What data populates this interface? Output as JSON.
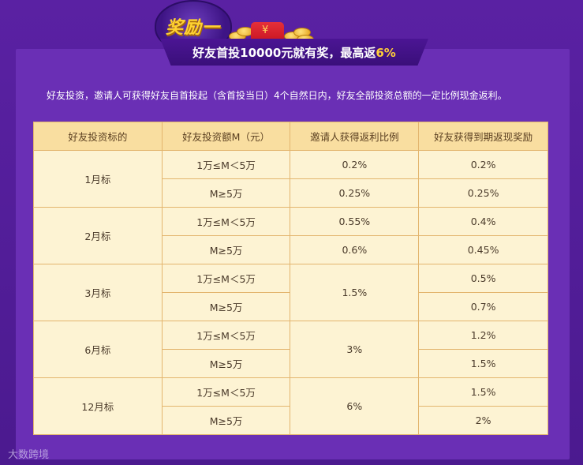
{
  "header": {
    "badge": "奖励一",
    "ribbon_prefix": "好友首投10000元就有奖，最高返",
    "ribbon_highlight": "6%",
    "redbag_symbol": "¥"
  },
  "description": "好友投资，邀请人可获得好友自首投起（含首投当日）4个自然日内，好友全部投资总额的一定比例现金返利。",
  "table": {
    "headers": [
      "好友投资标的",
      "好友投资额M（元）",
      "邀请人获得返利比例",
      "好友获得到期返现奖励"
    ],
    "groups": [
      {
        "term": "1月标",
        "rows": [
          {
            "range": "1万≤M＜5万",
            "inviter": "0.2%",
            "friend": "0.2%"
          },
          {
            "range": "M≥5万",
            "inviter": "0.25%",
            "friend": "0.25%"
          }
        ]
      },
      {
        "term": "2月标",
        "rows": [
          {
            "range": "1万≤M＜5万",
            "inviter": "0.55%",
            "friend": "0.4%"
          },
          {
            "range": "M≥5万",
            "inviter": "0.6%",
            "friend": "0.45%"
          }
        ]
      },
      {
        "term": "3月标",
        "inviter_merged": "1.5%",
        "rows": [
          {
            "range": "1万≤M＜5万",
            "friend": "0.5%"
          },
          {
            "range": "M≥5万",
            "friend": "0.7%"
          }
        ]
      },
      {
        "term": "6月标",
        "inviter_merged": "3%",
        "rows": [
          {
            "range": "1万≤M＜5万",
            "friend": "1.2%"
          },
          {
            "range": "M≥5万",
            "friend": "1.5%"
          }
        ]
      },
      {
        "term": "12月标",
        "inviter_merged": "6%",
        "rows": [
          {
            "range": "1万≤M＜5万",
            "friend": "1.5%"
          },
          {
            "range": "M≥5万",
            "friend": "2%"
          }
        ]
      }
    ]
  },
  "watermark": "大数跨境",
  "colors": {
    "background": "#4b1a8f",
    "panel": "#6a2fb5",
    "table_bg": "#fdf3d3",
    "table_header": "#f9dea0",
    "table_border": "#e3b56e",
    "accent": "#ffce3a"
  }
}
